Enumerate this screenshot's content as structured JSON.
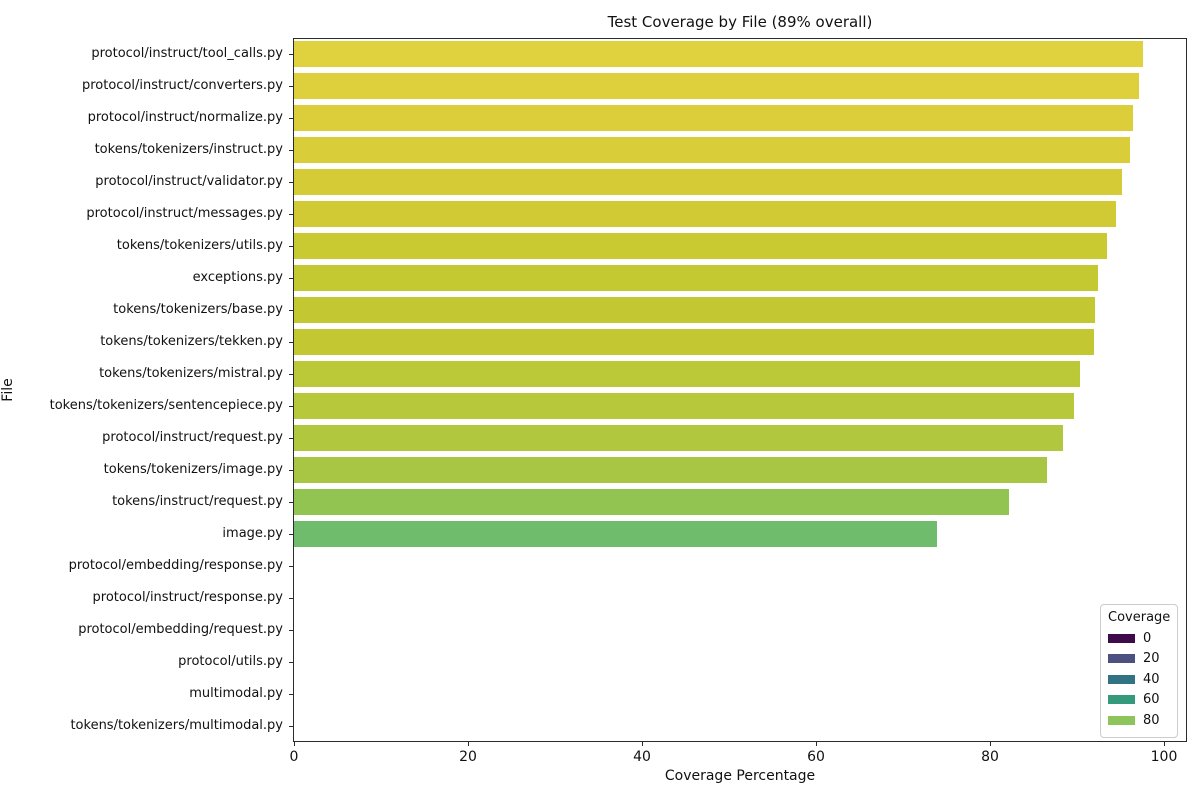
{
  "chart_data": {
    "type": "bar",
    "orientation": "horizontal",
    "title": "Test Coverage by File (89% overall)",
    "overall_coverage_percent": 89,
    "xlabel": "Coverage Percentage",
    "ylabel": "File",
    "xlim": [
      0,
      103
    ],
    "x_ticks": [
      0,
      20,
      40,
      60,
      80,
      100
    ],
    "grid": false,
    "legend_position": "lower right",
    "categories": [
      "protocol/instruct/tool_calls.py",
      "protocol/instruct/converters.py",
      "protocol/instruct/normalize.py",
      "tokens/tokenizers/instruct.py",
      "protocol/instruct/validator.py",
      "protocol/instruct/messages.py",
      "tokens/tokenizers/utils.py",
      "exceptions.py",
      "tokens/tokenizers/base.py",
      "tokens/tokenizers/tekken.py",
      "tokens/tokenizers/mistral.py",
      "tokens/tokenizers/sentencepiece.py",
      "protocol/instruct/request.py",
      "tokens/tokenizers/image.py",
      "tokens/instruct/request.py",
      "image.py",
      "protocol/embedding/response.py",
      "protocol/instruct/response.py",
      "protocol/embedding/request.py",
      "protocol/utils.py",
      "multimodal.py",
      "tokens/tokenizers/multimodal.py"
    ],
    "values": [
      97.6,
      97.1,
      96.4,
      96.1,
      95.2,
      94.5,
      93.4,
      92.4,
      92.1,
      92.0,
      90.4,
      89.6,
      88.4,
      86.6,
      82.2,
      73.9,
      0,
      0,
      0,
      0,
      0,
      0
    ],
    "bar_colors": [
      "#e0d13e",
      "#ded03d",
      "#dbce3a",
      "#dacd3a",
      "#d4cb36",
      "#d1ca34",
      "#c9c932",
      "#c4c831",
      "#c3c732",
      "#c2c732",
      "#bbc938",
      "#b7c83a",
      "#b1c73d",
      "#a8c643",
      "#92c452",
      "#6fbd6c",
      "#3e0b4a",
      "#3e0b4a",
      "#3e0b4a",
      "#3e0b4a",
      "#3e0b4a",
      "#3e0b4a"
    ],
    "legend": {
      "title": "Coverage",
      "entries": [
        {
          "label": "0",
          "color": "#3e0b4a"
        },
        {
          "label": "20",
          "color": "#4d5181"
        },
        {
          "label": "40",
          "color": "#317382"
        },
        {
          "label": "60",
          "color": "#35997b"
        },
        {
          "label": "80",
          "color": "#8ec45c"
        }
      ]
    }
  }
}
